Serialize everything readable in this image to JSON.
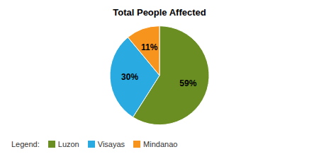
{
  "chart_data": {
    "type": "pie",
    "title": "Total People Affected",
    "categories": [
      "Luzon",
      "Visayas",
      "Mindanao"
    ],
    "values": [
      59,
      30,
      11
    ],
    "value_labels": [
      "59%",
      "30%",
      "11%"
    ],
    "colors": [
      "#6b8e23",
      "#29abe2",
      "#f7941d"
    ],
    "data_labels": true,
    "legend": "lower left",
    "annotations": [
      "Legend:"
    ]
  }
}
